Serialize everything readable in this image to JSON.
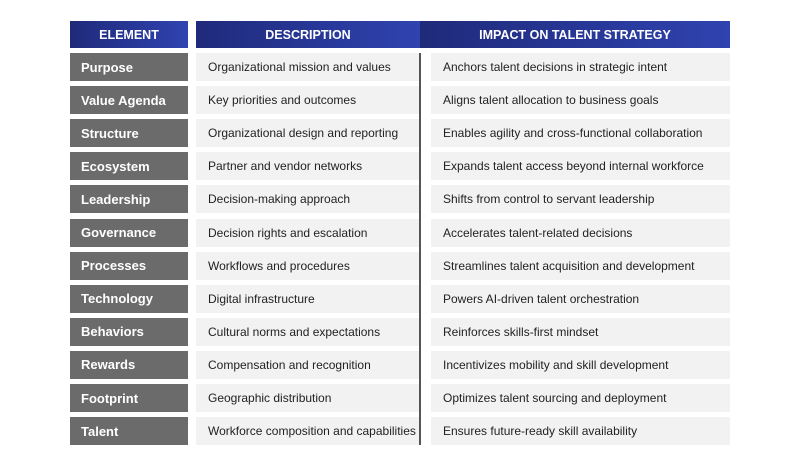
{
  "table": {
    "columns": [
      "ELEMENT",
      "DESCRIPTION",
      "IMPACT ON TALENT STRATEGY"
    ],
    "rows": [
      [
        "Purpose",
        "Organizational mission and values",
        "Anchors talent decisions in strategic intent"
      ],
      [
        "Value Agenda",
        "Key priorities and outcomes",
        "Aligns talent allocation to business goals"
      ],
      [
        "Structure",
        "Organizational design and reporting",
        "Enables agility and cross-functional collaboration"
      ],
      [
        "Ecosystem",
        "Partner and vendor networks",
        "Expands talent access beyond internal workforce"
      ],
      [
        "Leadership",
        "Decision-making approach",
        "Shifts from control to servant leadership"
      ],
      [
        "Governance",
        "Decision rights and escalation",
        "Accelerates talent-related decisions"
      ],
      [
        "Processes",
        "Workflows and procedures",
        "Streamlines talent acquisition and development"
      ],
      [
        "Technology",
        "Digital infrastructure",
        "Powers AI-driven talent orchestration"
      ],
      [
        "Behaviors",
        "Cultural norms and expectations",
        "Reinforces skills-first mindset"
      ],
      [
        "Rewards",
        "Compensation and recognition",
        "Incentivizes mobility and skill development"
      ],
      [
        "Footprint",
        "Geographic distribution",
        "Optimizes talent sourcing and deployment"
      ],
      [
        "Talent",
        "Workforce composition and capabilities",
        "Ensures future-ready skill availability"
      ]
    ]
  }
}
